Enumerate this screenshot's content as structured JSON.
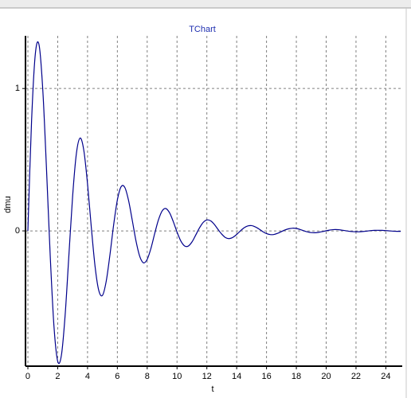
{
  "chart_data": {
    "type": "line",
    "title": "TChart",
    "x_label": "t",
    "y_label": "dmu",
    "x": [
      0,
      0.25,
      0.5,
      0.75,
      1,
      1.25,
      1.5,
      1.75,
      2,
      2.25,
      2.5,
      2.75,
      3,
      3.25,
      3.5,
      3.75,
      4,
      4.25,
      4.5,
      4.75,
      5,
      5.25,
      5.5,
      5.75,
      6,
      6.25,
      6.5,
      6.75,
      7,
      7.25,
      7.5,
      7.75,
      8,
      8.25,
      8.5,
      8.75,
      9,
      9.25,
      9.5,
      9.75,
      10,
      10.25,
      10.5,
      10.75,
      11,
      11.25,
      11.5,
      11.75,
      12,
      12.25,
      12.5,
      12.75,
      13,
      13.25,
      13.5,
      13.75,
      14,
      14.25,
      14.5,
      14.75,
      15,
      15.25,
      15.5,
      15.75,
      16,
      16.25,
      16.5,
      16.75,
      17,
      17.25,
      17.5,
      17.75,
      18,
      18.25,
      18.5,
      18.75,
      19,
      19.25,
      19.5,
      19.75,
      20,
      20.25,
      20.5,
      20.75,
      21,
      21.25,
      21.5,
      21.75,
      22,
      22.25,
      22.5,
      22.75,
      23,
      23.25,
      23.5,
      23.75,
      24,
      24.25,
      24.5,
      24.75,
      25
    ],
    "series": [
      {
        "name": "dmu",
        "color": "#00008b",
        "values": [
          0,
          0.778,
          1.243,
          1.306,
          0.99,
          0.432,
          -0.179,
          -0.671,
          -0.916,
          -0.872,
          -0.589,
          -0.172,
          0.243,
          0.541,
          0.652,
          0.566,
          0.33,
          0.029,
          -0.245,
          -0.417,
          -0.453,
          -0.355,
          -0.17,
          0.042,
          0.217,
          0.31,
          0.305,
          0.214,
          0.074,
          -0.071,
          -0.179,
          -0.224,
          -0.2,
          -0.123,
          -0.02,
          0.076,
          0.14,
          0.157,
          0.127,
          0.065,
          -0.008,
          -0.07,
          -0.105,
          -0.107,
          -0.078,
          -0.03,
          0.02,
          0.059,
          0.077,
          0.071,
          0.046,
          0.01,
          -0.023,
          -0.047,
          -0.054,
          -0.045,
          -0.025,
          0,
          0.022,
          0.035,
          0.037,
          0.028,
          0.013,
          -0.005,
          -0.019,
          -0.026,
          -0.025,
          -0.017,
          -0.005,
          0.007,
          0.015,
          0.019,
          0.017,
          0.01,
          0.001,
          -0.007,
          -0.012,
          -0.013,
          -0.01,
          -0.005,
          0.001,
          0.006,
          0.009,
          0.009,
          0.006,
          0.002,
          -0.002,
          -0.005,
          -0.006,
          -0.006,
          -0.004,
          -0.001,
          0.002,
          0.004,
          0.004,
          0.004,
          0.002,
          0,
          -0.002,
          -0.003,
          -0.003
        ]
      }
    ],
    "xlim": [
      -0.16,
      25.1
    ],
    "ylim": [
      -0.95,
      1.37
    ],
    "xticks": [
      0,
      2,
      4,
      6,
      8,
      10,
      12,
      14,
      16,
      18,
      20,
      22,
      24
    ],
    "yticks": [
      0,
      1
    ],
    "grid": true
  }
}
